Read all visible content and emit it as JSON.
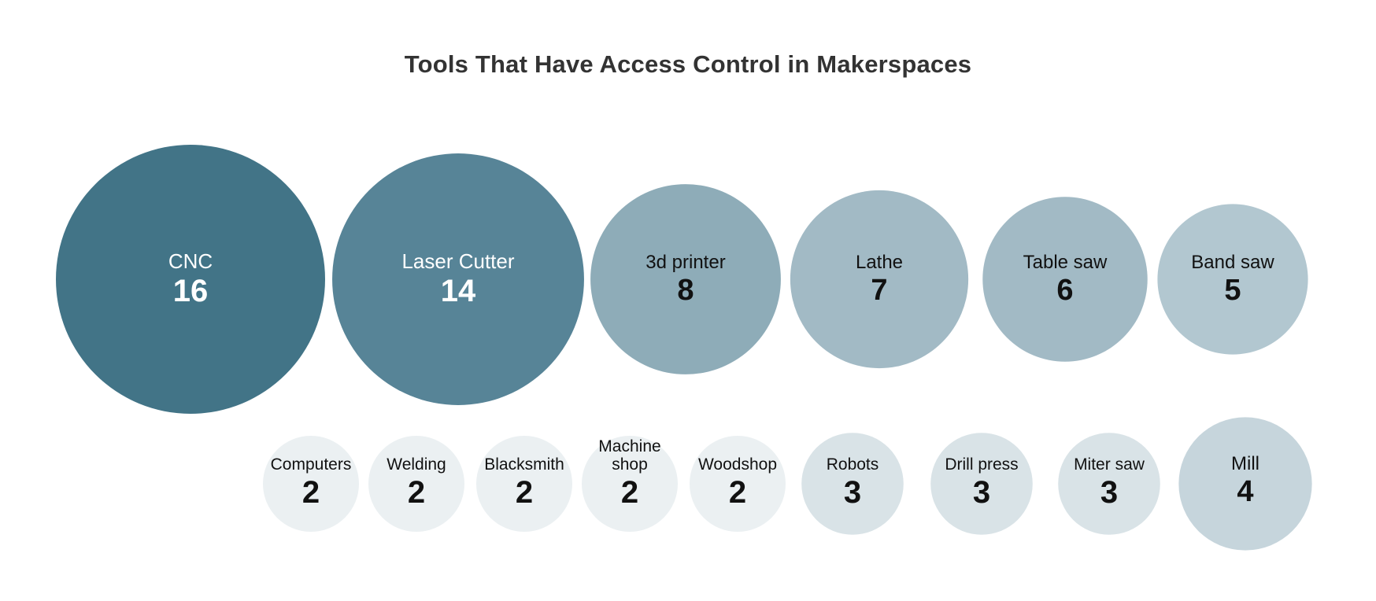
{
  "chart_data": {
    "type": "bubble",
    "title": "Tools That Have Access Control in Makerspaces",
    "items": [
      {
        "label": "CNC",
        "value": 16,
        "color": "#427487",
        "text_color": "#ffffff"
      },
      {
        "label": "Laser Cutter",
        "value": 14,
        "color": "#578497",
        "text_color": "#ffffff"
      },
      {
        "label": "3d printer",
        "value": 8,
        "color": "#8eacb8",
        "text_color": "#111111"
      },
      {
        "label": "Lathe",
        "value": 7,
        "color": "#a2bac5",
        "text_color": "#111111"
      },
      {
        "label": "Table saw",
        "value": 6,
        "color": "#a2bac5",
        "text_color": "#111111"
      },
      {
        "label": "Band saw",
        "value": 5,
        "color": "#b2c7d0",
        "text_color": "#111111"
      },
      {
        "label": "Computers",
        "value": 2,
        "color": "#ebf0f2",
        "text_color": "#111111"
      },
      {
        "label": "Welding",
        "value": 2,
        "color": "#ebf0f2",
        "text_color": "#111111"
      },
      {
        "label": "Blacksmith",
        "value": 2,
        "color": "#ebf0f2",
        "text_color": "#111111"
      },
      {
        "label": "Machine\nshop",
        "value": 2,
        "color": "#ebf0f2",
        "text_color": "#111111"
      },
      {
        "label": "Woodshop",
        "value": 2,
        "color": "#ebf0f2",
        "text_color": "#111111"
      },
      {
        "label": "Robots",
        "value": 3,
        "color": "#d9e3e7",
        "text_color": "#111111"
      },
      {
        "label": "Drill press",
        "value": 3,
        "color": "#d9e3e7",
        "text_color": "#111111"
      },
      {
        "label": "Miter saw",
        "value": 3,
        "color": "#d9e3e7",
        "text_color": "#111111"
      },
      {
        "label": "Mill",
        "value": 4,
        "color": "#c6d5dc",
        "text_color": "#111111"
      }
    ]
  }
}
